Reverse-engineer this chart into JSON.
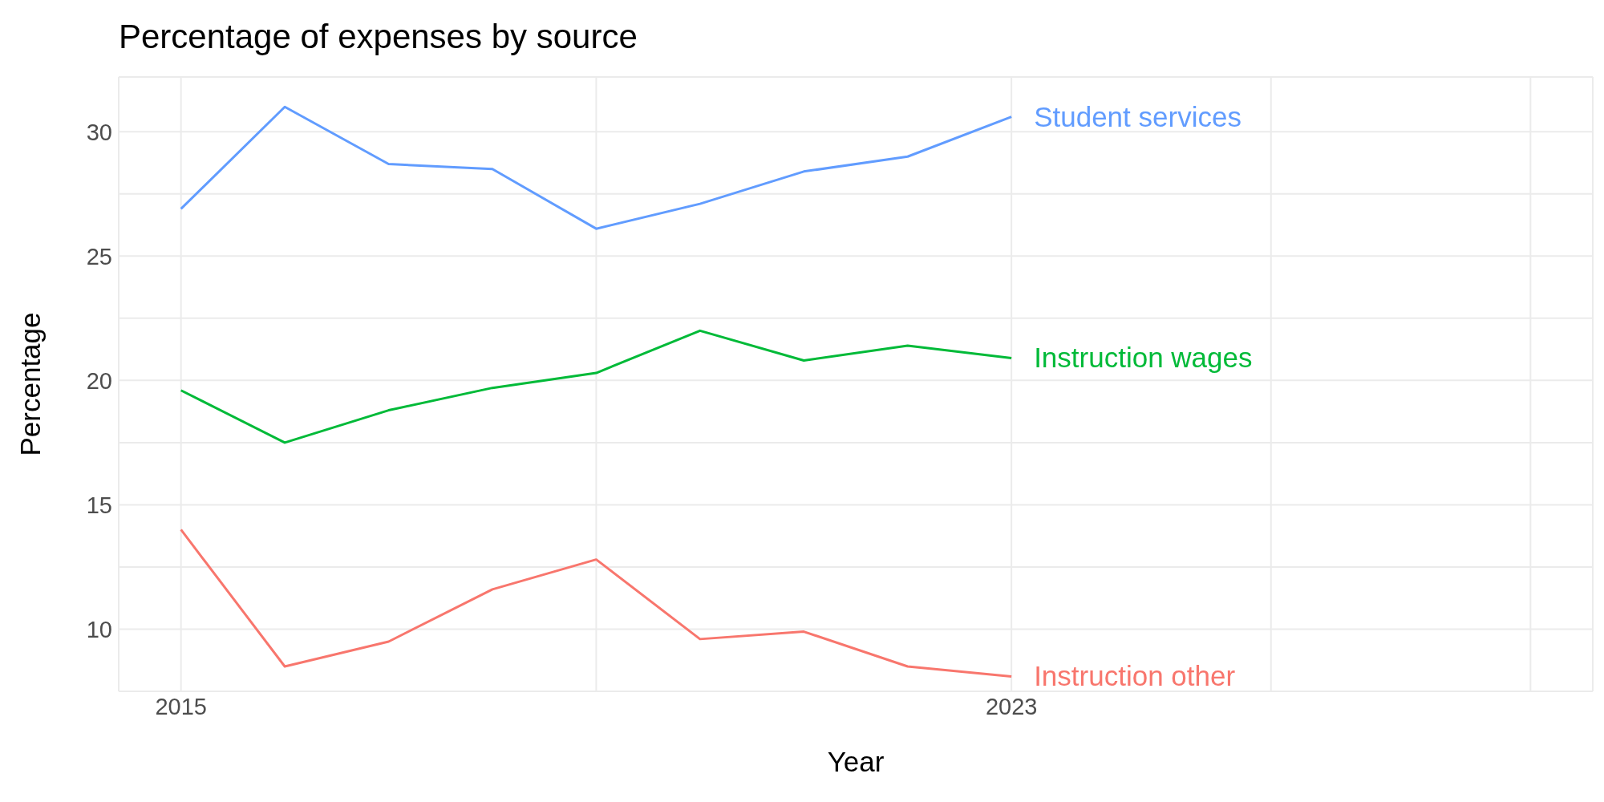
{
  "chart_data": {
    "type": "line",
    "title": "Percentage of expenses by source",
    "xlabel": "Year",
    "ylabel": "Percentage",
    "x": [
      2015,
      2016,
      2017,
      2018,
      2019,
      2020,
      2021,
      2022,
      2023
    ],
    "series": [
      {
        "name": "Student services",
        "color": "#619cff",
        "values": [
          26.9,
          31.0,
          28.7,
          28.5,
          26.1,
          27.1,
          28.4,
          29.0,
          30.6
        ]
      },
      {
        "name": "Instruction wages",
        "color": "#00ba38",
        "values": [
          19.6,
          17.5,
          18.8,
          19.7,
          20.3,
          22.0,
          20.8,
          21.4,
          20.9
        ]
      },
      {
        "name": "Instruction other",
        "color": "#f8766d",
        "values": [
          14.0,
          8.5,
          9.5,
          11.6,
          12.8,
          9.6,
          9.9,
          8.5,
          8.1
        ]
      }
    ],
    "xlim": [
      2014.4,
      2028.6
    ],
    "xticks": [
      2015,
      {
        "value": 2019,
        "label": null
      },
      2023,
      {
        "value": 2025.5,
        "label": null
      },
      {
        "value": 2028,
        "label": null
      }
    ],
    "ylim": [
      7.5,
      32.2
    ],
    "yticks": [
      {
        "value": 7.5,
        "label": null
      },
      10,
      {
        "value": 12.5,
        "label": null
      },
      15,
      {
        "value": 17.5,
        "label": null
      },
      20,
      {
        "value": 22.5,
        "label": null
      },
      25,
      {
        "value": 27.5,
        "label": null
      },
      30
    ],
    "grid": true,
    "legend": false,
    "marker": "none",
    "line_style": "solid"
  }
}
